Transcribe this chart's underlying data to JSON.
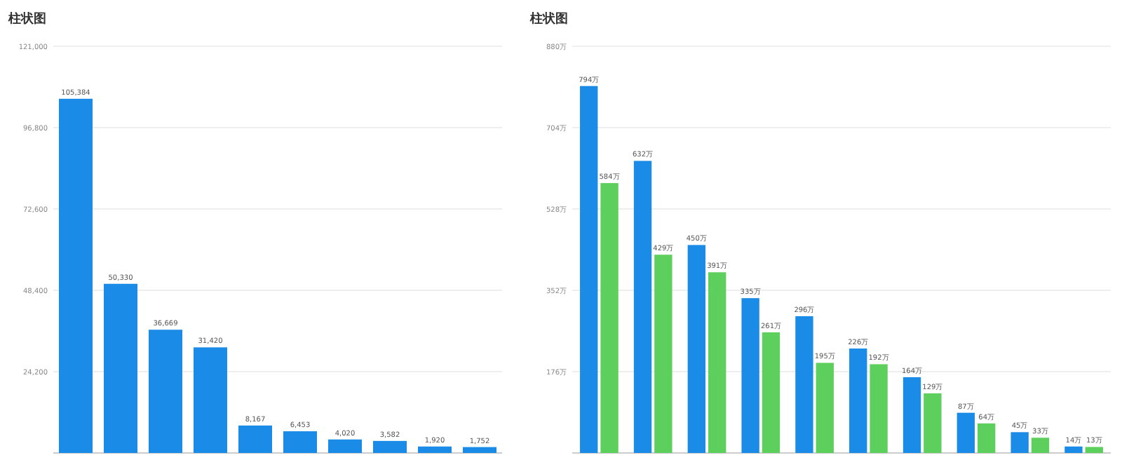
{
  "chart_data": [
    {
      "type": "bar",
      "title": "柱状图",
      "categories": [
        null,
        null,
        null,
        null,
        null,
        null,
        null,
        null,
        null,
        null
      ],
      "values": [
        105384,
        50330,
        36669,
        31420,
        8167,
        6453,
        4020,
        3582,
        1920,
        1752
      ],
      "color": "#1a8be6",
      "ylim": [
        0,
        121000
      ],
      "yticks": [
        {
          "value": 24200,
          "label": "24,200"
        },
        {
          "value": 48400,
          "label": "48,400"
        },
        {
          "value": 72600,
          "label": "72,600"
        },
        {
          "value": 96800,
          "label": "96,800"
        },
        {
          "value": 121000,
          "label": "121,000"
        }
      ],
      "value_labels": [
        "105,384",
        "50,330",
        "36,669",
        "31,420",
        "8,167",
        "6,453",
        "4,020",
        "3,582",
        "1,920",
        "1,752"
      ],
      "grid": "y"
    },
    {
      "type": "bar",
      "title": "柱状图",
      "categories": [
        null,
        null,
        null,
        null,
        null,
        null,
        null,
        null,
        null,
        null
      ],
      "series": [
        {
          "color": "#1a8be6",
          "values": [
            794,
            632,
            450,
            335,
            296,
            226,
            164,
            87,
            45,
            14
          ],
          "value_labels": [
            "794万",
            "632万",
            "450万",
            "335万",
            "296万",
            "226万",
            "164万",
            "87万",
            "45万",
            "14万"
          ]
        },
        {
          "color": "#5ccf5c",
          "values": [
            584,
            429,
            391,
            261,
            195,
            192,
            129,
            64,
            33,
            13
          ],
          "value_labels": [
            "584万",
            "429万",
            "391万",
            "261万",
            "195万",
            "192万",
            "129万",
            "64万",
            "33万",
            "13万"
          ]
        }
      ],
      "ylim": [
        0,
        880
      ],
      "yticks": [
        {
          "value": 176,
          "label": "176万"
        },
        {
          "value": 352,
          "label": "352万"
        },
        {
          "value": 528,
          "label": "528万"
        },
        {
          "value": 704,
          "label": "704万"
        },
        {
          "value": 880,
          "label": "880万"
        }
      ],
      "grid": "y"
    }
  ]
}
